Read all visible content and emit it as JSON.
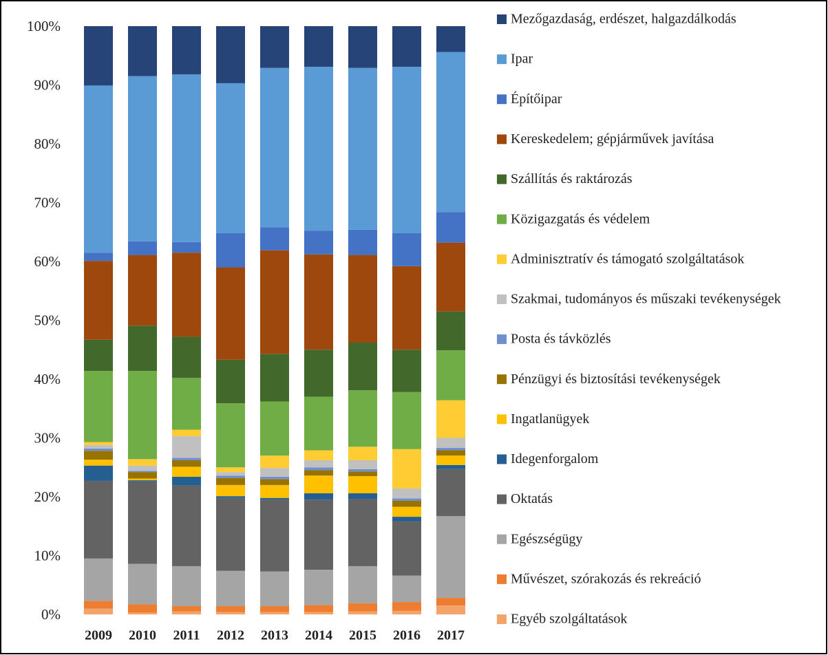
{
  "chart_data": {
    "type": "stacked-bar",
    "categories": [
      "2009",
      "2010",
      "2011",
      "2012",
      "2013",
      "2014",
      "2015",
      "2016",
      "2017"
    ],
    "ylim": [
      0,
      100
    ],
    "yticks": [
      {
        "value": 0,
        "label": "0%"
      },
      {
        "value": 10,
        "label": "10%"
      },
      {
        "value": 20,
        "label": "20%"
      },
      {
        "value": 30,
        "label": "30%"
      },
      {
        "value": 40,
        "label": "40%"
      },
      {
        "value": 50,
        "label": "50%"
      },
      {
        "value": 60,
        "label": "60%"
      },
      {
        "value": 70,
        "label": "70%"
      },
      {
        "value": 80,
        "label": "80%"
      },
      {
        "value": 90,
        "label": "90%"
      },
      {
        "value": 100,
        "label": "100%"
      }
    ],
    "legend": "right",
    "series": [
      {
        "name": "Mezőgazdaság, erdészet, halgazdálkodás",
        "color": "#264478",
        "values": [
          10.1,
          8.5,
          8.2,
          9.7,
          7.1,
          6.9,
          7.1,
          6.9,
          4.4
        ]
      },
      {
        "name": "Ipar",
        "color": "#5b9bd5",
        "values": [
          28.4,
          28.1,
          28.5,
          25.5,
          27.1,
          27.9,
          27.5,
          28.3,
          27.2
        ]
      },
      {
        "name": "Építőipar",
        "color": "#4472c4",
        "values": [
          1.4,
          2.3,
          1.8,
          5.8,
          3.9,
          4.0,
          4.3,
          5.6,
          5.2
        ]
      },
      {
        "name": "Kereskedelem; gépjárművek javítása",
        "color": "#9e480e",
        "values": [
          13.4,
          12.0,
          14.3,
          15.7,
          17.6,
          16.2,
          14.9,
          14.2,
          11.7
        ]
      },
      {
        "name": "Szállítás és raktározás",
        "color": "#43682b",
        "values": [
          5.3,
          7.7,
          7.0,
          7.4,
          8.1,
          8.0,
          8.1,
          7.2,
          6.6
        ]
      },
      {
        "name": "Közigazgatás és védelem",
        "color": "#70ad47",
        "values": [
          12.1,
          15.0,
          8.8,
          10.9,
          9.2,
          9.1,
          9.6,
          9.7,
          8.5
        ]
      },
      {
        "name": "Adminisztratív és támogató szolgáltatások",
        "color": "#ffcd33",
        "values": [
          0.5,
          1.1,
          1.1,
          0.8,
          2.1,
          1.7,
          2.3,
          6.7,
          6.4
        ]
      },
      {
        "name": "Szakmai, tudományos és műszaki tevékenységek",
        "color": "#c0c0c0",
        "values": [
          0.6,
          0.9,
          3.7,
          0.6,
          1.5,
          1.2,
          1.5,
          1.7,
          1.7
        ]
      },
      {
        "name": "Posta és távközlés",
        "color": "#6f8fcf",
        "values": [
          0.4,
          0.2,
          0.4,
          0.4,
          0.4,
          0.5,
          0.4,
          0.4,
          0.4
        ]
      },
      {
        "name": "Pénzügyi és biztosítási tevékenységek",
        "color": "#997300",
        "values": [
          1.5,
          1.1,
          1.1,
          1.2,
          1.0,
          0.9,
          0.8,
          1.0,
          0.9
        ]
      },
      {
        "name": "Ingatlanügyek",
        "color": "#ffc000",
        "values": [
          1.0,
          0.3,
          1.7,
          1.9,
          2.2,
          3.0,
          2.9,
          1.7,
          1.6
        ]
      },
      {
        "name": "Idegenforgalom",
        "color": "#255e91",
        "values": [
          2.6,
          0.2,
          1.5,
          0.3,
          0.3,
          1.1,
          1.0,
          0.8,
          0.7
        ]
      },
      {
        "name": "Oktatás",
        "color": "#636363",
        "values": [
          13.2,
          14.0,
          13.7,
          12.4,
          12.2,
          11.9,
          11.4,
          9.2,
          8.0
        ]
      },
      {
        "name": "Egészségügy",
        "color": "#a5a5a5",
        "values": [
          7.2,
          6.9,
          6.8,
          6.0,
          5.9,
          6.0,
          6.3,
          4.5,
          13.9
        ]
      },
      {
        "name": "Művészet, szórakozás és rekreáció",
        "color": "#ed7d31",
        "values": [
          1.3,
          1.4,
          0.9,
          1.0,
          1.0,
          1.2,
          1.4,
          1.5,
          1.3
        ]
      },
      {
        "name": "Egyéb szolgáltatások",
        "color": "#f4a46a",
        "values": [
          1.0,
          0.3,
          0.5,
          0.4,
          0.4,
          0.4,
          0.5,
          0.6,
          1.5
        ]
      }
    ]
  }
}
